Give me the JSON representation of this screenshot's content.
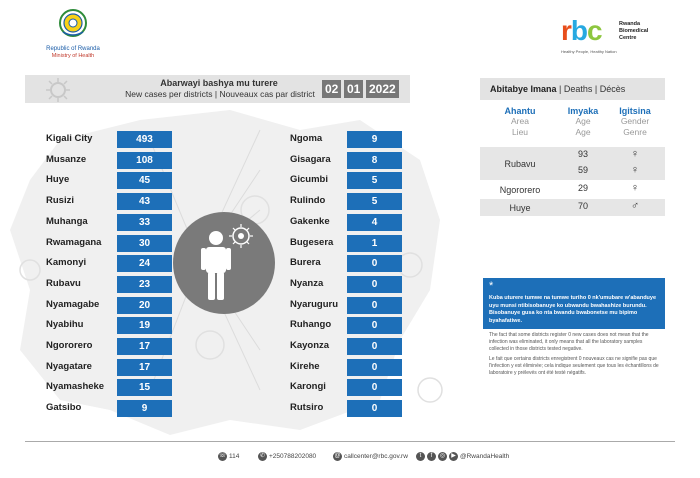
{
  "header": {
    "gov_line1": "Republic of Rwanda",
    "gov_line2": "Ministry of Health",
    "rbc_letters": "rbc",
    "rbc_name": [
      "Rwanda",
      "Biomedical",
      "Centre"
    ],
    "rbc_tagline": "Healthy People, Healthy Nation"
  },
  "title": {
    "main": "Abarwayi bashya mu turere",
    "sub": "New cases per districts  |  Nouveaux cas par district",
    "date": [
      "02",
      "01",
      "2022"
    ]
  },
  "districts_left": [
    {
      "name": "Kigali City",
      "value": "493"
    },
    {
      "name": "Musanze",
      "value": "108"
    },
    {
      "name": "Huye",
      "value": "45"
    },
    {
      "name": "Rusizi",
      "value": "43"
    },
    {
      "name": "Muhanga",
      "value": "33"
    },
    {
      "name": "Rwamagana",
      "value": "30"
    },
    {
      "name": "Kamonyi",
      "value": "24"
    },
    {
      "name": "Rubavu",
      "value": "23"
    },
    {
      "name": "Nyamagabe",
      "value": "20"
    },
    {
      "name": "Nyabihu",
      "value": "19"
    },
    {
      "name": "Ngororero",
      "value": "17"
    },
    {
      "name": "Nyagatare",
      "value": "17"
    },
    {
      "name": "Nyamasheke",
      "value": "15"
    },
    {
      "name": "Gatsibo",
      "value": "9"
    }
  ],
  "districts_right": [
    {
      "name": "Ngoma",
      "value": "9"
    },
    {
      "name": "Gisagara",
      "value": "8"
    },
    {
      "name": "Gicumbi",
      "value": "5"
    },
    {
      "name": "Rulindo",
      "value": "5"
    },
    {
      "name": "Gakenke",
      "value": "4"
    },
    {
      "name": "Bugesera",
      "value": "1"
    },
    {
      "name": "Burera",
      "value": "0"
    },
    {
      "name": "Nyanza",
      "value": "0"
    },
    {
      "name": "Nyaruguru",
      "value": "0"
    },
    {
      "name": "Ruhango",
      "value": "0"
    },
    {
      "name": "Kayonza",
      "value": "0"
    },
    {
      "name": "Kirehe",
      "value": "0"
    },
    {
      "name": "Karongi",
      "value": "0"
    },
    {
      "name": "Rutsiro",
      "value": "0"
    }
  ],
  "deaths": {
    "header_bold": "Abitabye Imana",
    "header_rest": " |  Deaths  |  Décès",
    "col_place": {
      "ky": "Ahantu",
      "en": "Area",
      "fr": "Lieu"
    },
    "col_age": {
      "ky": "Imyaka",
      "en": "Age",
      "fr": "Age"
    },
    "col_gender": {
      "ky": "Igitsina",
      "en": "Gender",
      "fr": "Genre"
    },
    "rows": [
      {
        "place": "Rubavu",
        "ages": [
          "93",
          "59"
        ],
        "genders": [
          "♀",
          "♀"
        ]
      },
      {
        "place": "Ngororero",
        "ages": [
          "29"
        ],
        "genders": [
          "♀"
        ]
      },
      {
        "place": "Huye",
        "ages": [
          "70"
        ],
        "genders": [
          "♂"
        ]
      }
    ]
  },
  "note": {
    "symbol": "*",
    "ky": "Kuba uturere tumwe na tumwe turiho 0 nk'umubare w'abanduye uyu munsi ntibisobanuye ko ubwandu bwahashize burundu. Bisobanuye gusa ko nta bwandu bwabonetse mu bipimo byahafatiwe.",
    "en": "The fact that some districts register 0 new cases does not mean that the infection was eliminated, it only means that all the laboratory samples collected in those districts tested negative.",
    "fr": "Le fait que certains districts enregistrent 0 nouveaux cas ne signifie pas que l'infection y est éliminée; cela indique seulement que tous les échantillons de laboratoire y prélevés ont été testé négatifs."
  },
  "footer": {
    "hotline": "114",
    "phone": "+250788202080",
    "email": "callcenter@rbc.gov.rw",
    "social": "@RwandaHealth"
  },
  "colors": {
    "accent": "#1d6fb8",
    "panel": "#e3e3e3",
    "rbc_r": "#e84e1b",
    "rbc_b": "#27a9e1",
    "rbc_c": "#8dc63f"
  }
}
